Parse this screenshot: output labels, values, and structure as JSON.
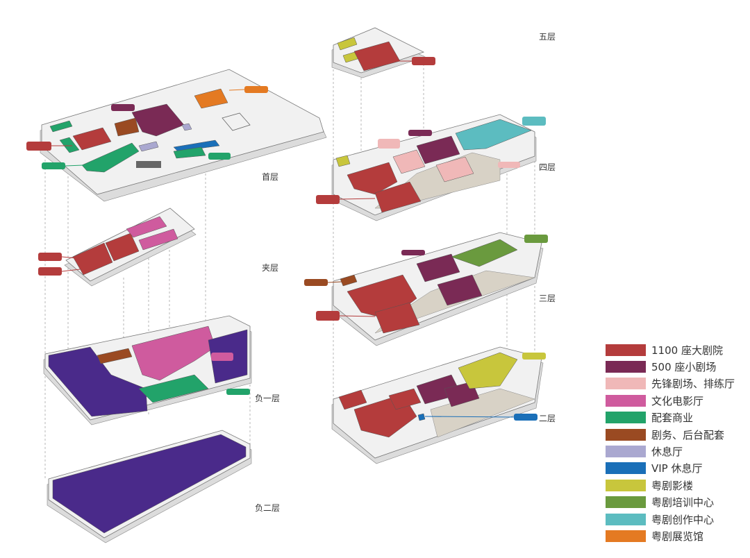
{
  "floors": {
    "f5": "五层",
    "f4": "四层",
    "f3": "三层",
    "f2": "二层",
    "f1": "首层",
    "mezz": "夹层",
    "b1": "负一层",
    "b2": "负二层"
  },
  "colors": {
    "grand_theatre": "#b43c3c",
    "small_theatre": "#7a2a55",
    "pioneer": "#f0b8b8",
    "cinema": "#cf5b9e",
    "commerce": "#22a36a",
    "backstage": "#9a4a22",
    "lounge": "#aaa8d0",
    "vip": "#1a6fb8",
    "opera_film": "#c8c63c",
    "training": "#6a9a3e",
    "creation": "#5cbcc0",
    "exhibition": "#e47a22",
    "parking": "#4a2a8a"
  },
  "legend": [
    {
      "label": "1100 座大剧院",
      "color": "#b43c3c"
    },
    {
      "label": "500 座小剧场",
      "color": "#7a2a55"
    },
    {
      "label": "先锋剧场、排练厅",
      "color": "#f0b8b8"
    },
    {
      "label": "文化电影厅",
      "color": "#cf5b9e"
    },
    {
      "label": "配套商业",
      "color": "#22a36a"
    },
    {
      "label": "剧务、后台配套",
      "color": "#9a4a22"
    },
    {
      "label": "休息厅",
      "color": "#aaa8d0"
    },
    {
      "label": "VIP 休息厅",
      "color": "#1a6fb8"
    },
    {
      "label": "粤剧影楼",
      "color": "#c8c63c"
    },
    {
      "label": "粤剧培训中心",
      "color": "#6a9a3e"
    },
    {
      "label": "粤剧创作中心",
      "color": "#5cbcc0"
    },
    {
      "label": "粤剧展览馆",
      "color": "#e47a22"
    }
  ]
}
